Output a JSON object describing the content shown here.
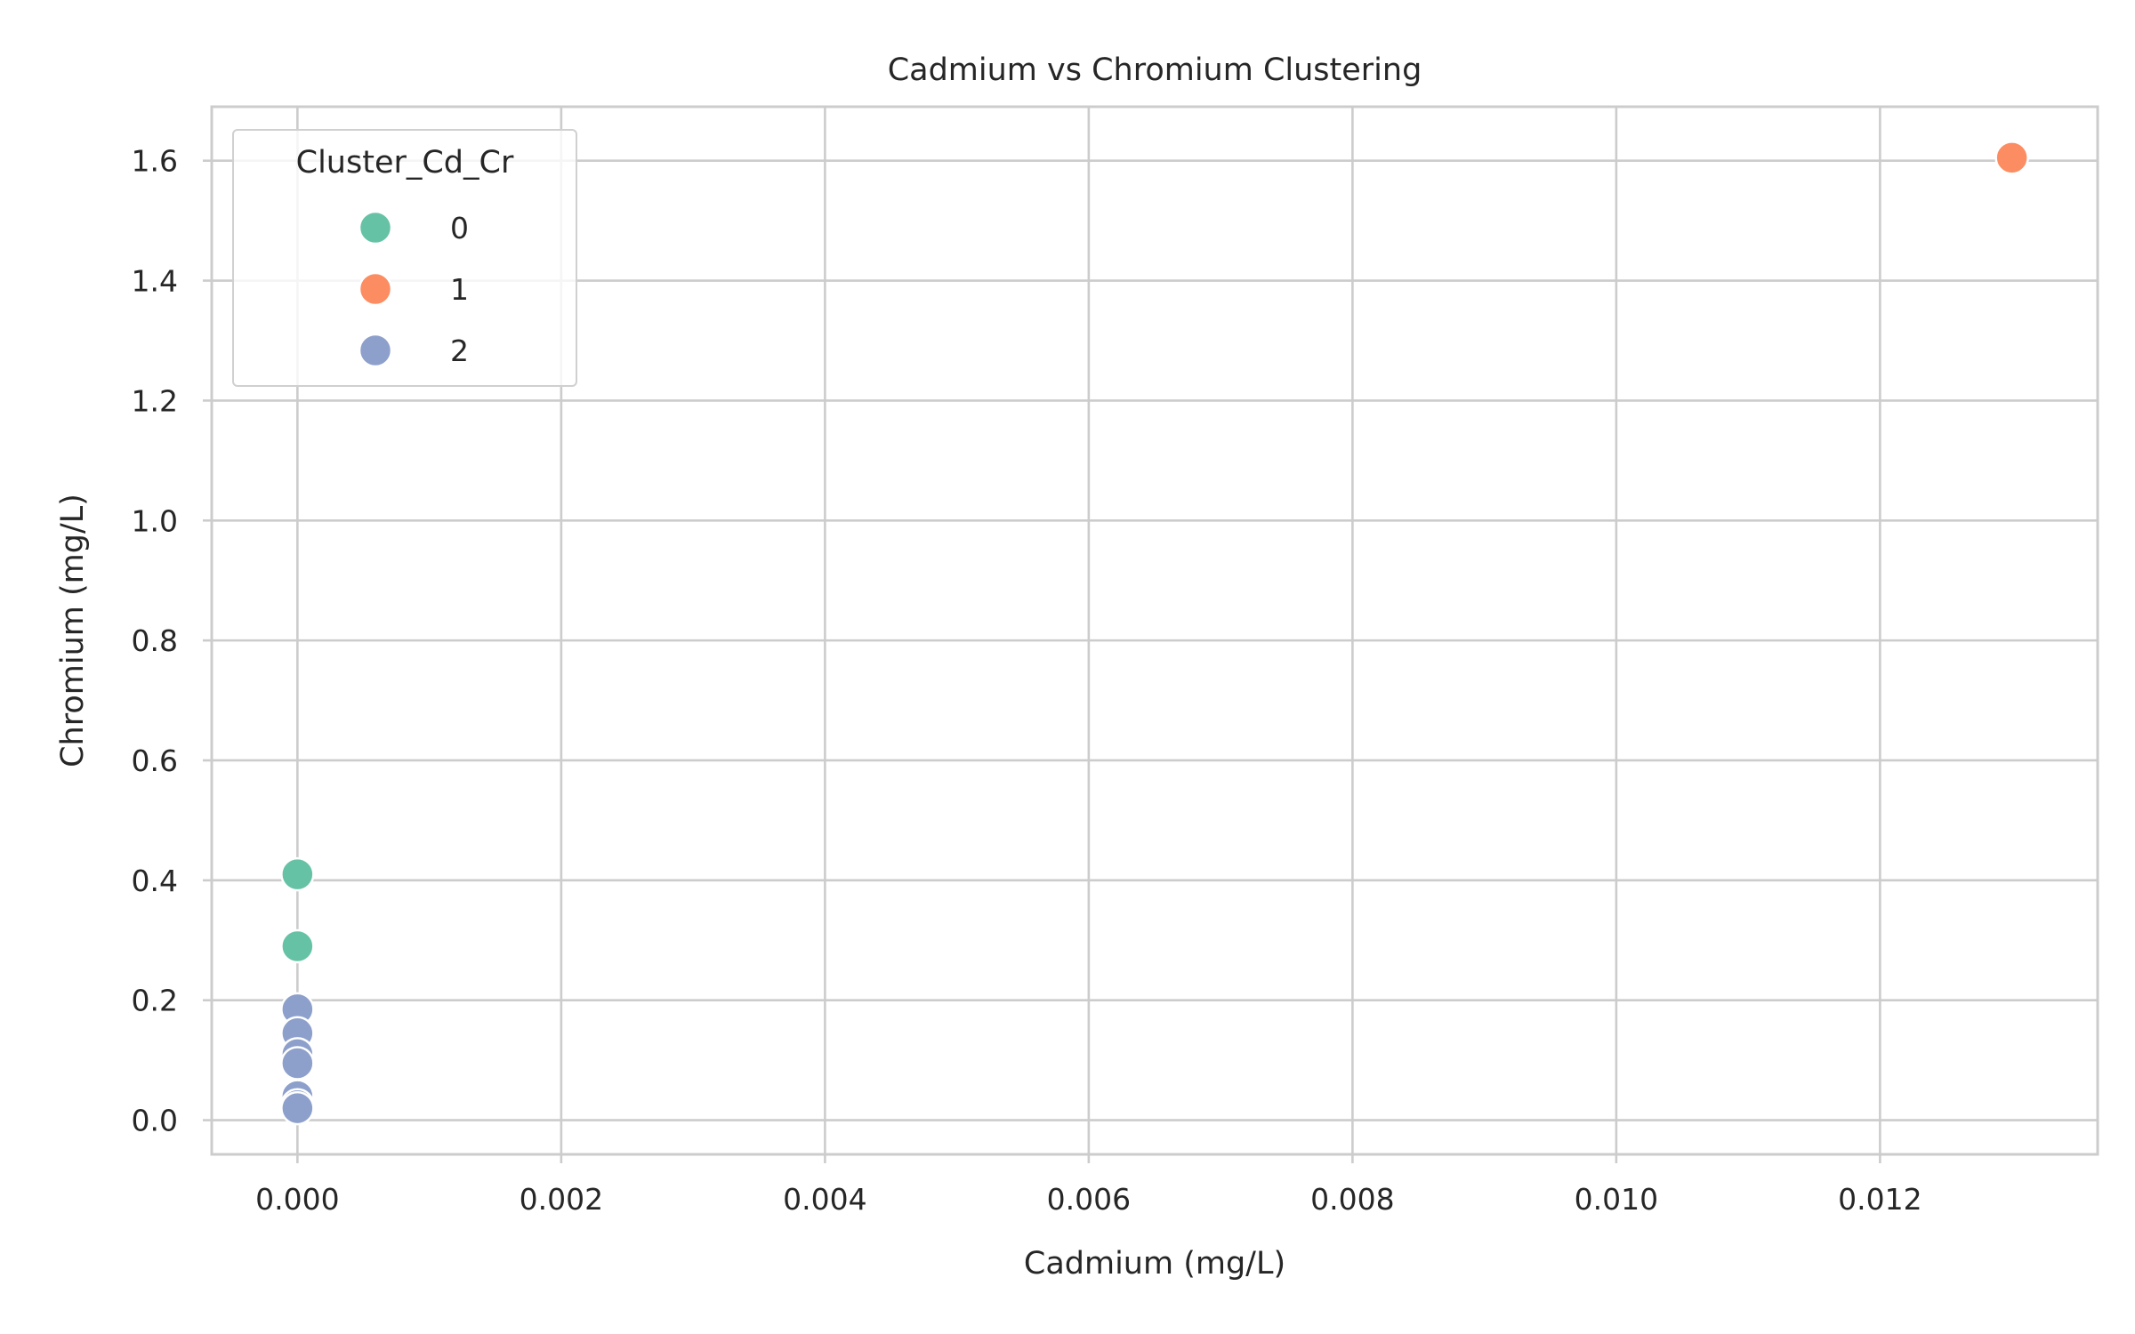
{
  "chart_data": {
    "type": "scatter",
    "title": "Cadmium vs Chromium Clustering",
    "xlabel": "Cadmium (mg/L)",
    "ylabel": "Chromium (mg/L)",
    "xlim": [
      -0.00065,
      0.01365
    ],
    "ylim": [
      -0.057,
      1.69
    ],
    "x_ticks": [
      0.0,
      0.002,
      0.004,
      0.006,
      0.008,
      0.01,
      0.012
    ],
    "x_tick_labels": [
      "0.000",
      "0.002",
      "0.004",
      "0.006",
      "0.008",
      "0.010",
      "0.012"
    ],
    "y_ticks": [
      0.0,
      0.2,
      0.4,
      0.6,
      0.8,
      1.0,
      1.2,
      1.4,
      1.6
    ],
    "y_tick_labels": [
      "0.0",
      "0.2",
      "0.4",
      "0.6",
      "0.8",
      "1.0",
      "1.2",
      "1.4",
      "1.6"
    ],
    "grid": true,
    "legend": {
      "title": "Cluster_Cd_Cr",
      "placement": "top-left"
    },
    "series": [
      {
        "name": "0",
        "color": "#66c2a5",
        "points": [
          [
            0.0,
            0.41
          ],
          [
            0.0,
            0.29
          ]
        ]
      },
      {
        "name": "1",
        "color": "#fc8d62",
        "points": [
          [
            0.013,
            1.605
          ]
        ]
      },
      {
        "name": "2",
        "color": "#8da0cb",
        "points": [
          [
            0.0,
            0.185
          ],
          [
            0.0,
            0.145
          ],
          [
            0.0,
            0.11
          ],
          [
            0.0,
            0.095
          ],
          [
            0.0,
            0.04
          ],
          [
            0.0,
            0.025
          ],
          [
            0.0,
            0.02
          ]
        ]
      }
    ]
  }
}
